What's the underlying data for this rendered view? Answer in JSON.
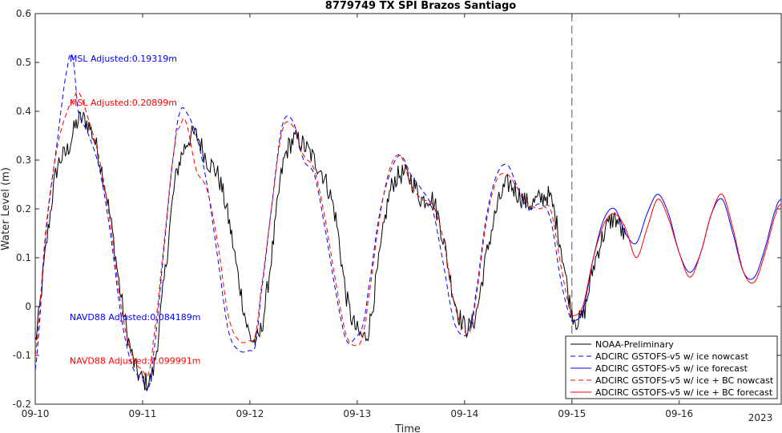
{
  "chart_data": {
    "type": "line",
    "title": "8779749 TX SPI Brazos Santiago",
    "xlabel": "Time",
    "ylabel": "Water Level (m)",
    "xlim": [
      0,
      6.95
    ],
    "ylim": [
      -0.2,
      0.6
    ],
    "x_unit": "days from 09-10 00:00 (2023)",
    "xticks": [
      0,
      1,
      2,
      3,
      4,
      5,
      6
    ],
    "xticklabels": [
      "09-10",
      "09-11",
      "09-12",
      "09-13",
      "09-14",
      "09-15",
      "09-16"
    ],
    "year_label": "2023",
    "yticks": [
      -0.2,
      -0.1,
      0,
      0.1,
      0.2,
      0.3,
      0.4,
      0.5,
      0.6
    ],
    "yticklabels": [
      "-0.2",
      "-0.1",
      "0",
      "0.1",
      "0.2",
      "0.3",
      "0.4",
      "0.5",
      "0.6"
    ],
    "nowcast_end_x": 5.0,
    "legend_position": "bottom-right",
    "grid": false,
    "annotations": [
      {
        "text": "MSL Adjusted:0.19319m",
        "x": 0.32,
        "y": 0.508,
        "color": "#0000ff"
      },
      {
        "text": "MSL Adjusted:0.20899m",
        "x": 0.32,
        "y": 0.418,
        "color": "#ff0000"
      },
      {
        "text": "NAVD88 Adjusted:0.084189m",
        "x": 0.32,
        "y": -0.021,
        "color": "#0000ff"
      },
      {
        "text": "NAVD88 Adjusted:0.099991m",
        "x": 0.32,
        "y": -0.111,
        "color": "#ff0000"
      }
    ],
    "series": [
      {
        "name": "NOAA-Preliminary",
        "color": "#000000",
        "dash": "",
        "noise": 0.022,
        "x": [
          0.0,
          0.1,
          0.2,
          0.3,
          0.4,
          0.5,
          0.6,
          0.7,
          0.8,
          0.9,
          1.0,
          1.1,
          1.2,
          1.3,
          1.4,
          1.5,
          1.6,
          1.7,
          1.8,
          1.9,
          2.0,
          2.1,
          2.2,
          2.3,
          2.4,
          2.5,
          2.6,
          2.7,
          2.8,
          2.9,
          3.0,
          3.1,
          3.2,
          3.3,
          3.4,
          3.5,
          3.6,
          3.7,
          3.8,
          3.9,
          4.0,
          4.1,
          4.2,
          4.3,
          4.4,
          4.5,
          4.6,
          4.7,
          4.8,
          4.9,
          5.0,
          5.1,
          5.2,
          5.3,
          5.4,
          5.5
        ],
        "y": [
          -0.07,
          0.12,
          0.28,
          0.32,
          0.38,
          0.37,
          0.3,
          0.18,
          0.02,
          -0.1,
          -0.15,
          -0.13,
          0.05,
          0.25,
          0.33,
          0.35,
          0.3,
          0.27,
          0.18,
          0.05,
          -0.06,
          -0.05,
          0.1,
          0.28,
          0.34,
          0.33,
          0.3,
          0.26,
          0.18,
          0.02,
          -0.05,
          -0.05,
          0.09,
          0.23,
          0.27,
          0.26,
          0.22,
          0.22,
          0.14,
          0.02,
          -0.04,
          -0.02,
          0.1,
          0.2,
          0.25,
          0.23,
          0.21,
          0.22,
          0.22,
          0.12,
          -0.01,
          -0.02,
          0.08,
          0.15,
          0.18,
          0.14
        ]
      },
      {
        "name": "ADCIRC GSTOFS-v5  w/ ice nowcast",
        "color": "#0000ff",
        "dash": "6,4",
        "x": [
          0.0,
          0.1,
          0.2,
          0.3,
          0.35,
          0.4,
          0.5,
          0.6,
          0.7,
          0.8,
          0.9,
          1.0,
          1.05,
          1.1,
          1.2,
          1.3,
          1.35,
          1.4,
          1.5,
          1.6,
          1.7,
          1.8,
          1.9,
          2.0,
          2.05,
          2.1,
          2.2,
          2.3,
          2.4,
          2.5,
          2.6,
          2.7,
          2.8,
          2.9,
          3.0,
          3.05,
          3.1,
          3.2,
          3.3,
          3.4,
          3.5,
          3.6,
          3.7,
          3.8,
          3.9,
          4.0,
          4.05,
          4.1,
          4.2,
          4.3,
          4.4,
          4.5,
          4.6,
          4.7,
          4.8,
          4.9,
          5.0
        ],
        "y": [
          -0.13,
          0.15,
          0.33,
          0.49,
          0.51,
          0.4,
          0.35,
          0.28,
          0.15,
          -0.02,
          -0.12,
          -0.15,
          -0.17,
          -0.1,
          0.12,
          0.33,
          0.4,
          0.4,
          0.35,
          0.25,
          0.1,
          -0.05,
          -0.09,
          -0.09,
          -0.08,
          0.02,
          0.2,
          0.37,
          0.38,
          0.3,
          0.27,
          0.16,
          0.03,
          -0.07,
          -0.06,
          -0.04,
          0.03,
          0.18,
          0.27,
          0.31,
          0.27,
          0.24,
          0.2,
          0.09,
          -0.03,
          -0.06,
          -0.04,
          0.02,
          0.18,
          0.27,
          0.29,
          0.24,
          0.2,
          0.21,
          0.18,
          0.05,
          -0.03
        ]
      },
      {
        "name": "ADCIRC GSTOFS-v5  w/ ice forecast",
        "color": "#0000ff",
        "dash": "",
        "x": [
          5.0,
          5.1,
          5.2,
          5.3,
          5.4,
          5.5,
          5.6,
          5.7,
          5.8,
          5.9,
          6.0,
          6.1,
          6.2,
          6.3,
          6.4,
          6.5,
          6.6,
          6.7,
          6.8,
          6.9,
          6.95
        ],
        "y": [
          -0.03,
          -0.01,
          0.1,
          0.18,
          0.2,
          0.15,
          0.13,
          0.19,
          0.23,
          0.19,
          0.11,
          0.07,
          0.11,
          0.19,
          0.22,
          0.15,
          0.07,
          0.06,
          0.12,
          0.2,
          0.22
        ]
      },
      {
        "name": "ADCIRC GSTOFS-v5  w/ ice + BC nowcast",
        "color": "#ff0000",
        "dash": "6,4",
        "x": [
          0.0,
          0.1,
          0.2,
          0.3,
          0.35,
          0.4,
          0.5,
          0.6,
          0.7,
          0.8,
          0.9,
          1.0,
          1.05,
          1.1,
          1.2,
          1.3,
          1.35,
          1.4,
          1.5,
          1.6,
          1.7,
          1.8,
          1.9,
          2.0,
          2.05,
          2.1,
          2.2,
          2.3,
          2.4,
          2.5,
          2.6,
          2.7,
          2.8,
          2.9,
          3.0,
          3.05,
          3.1,
          3.2,
          3.3,
          3.4,
          3.5,
          3.6,
          3.7,
          3.8,
          3.9,
          4.0,
          4.05,
          4.1,
          4.2,
          4.3,
          4.4,
          4.5,
          4.6,
          4.7,
          4.8,
          4.9,
          5.0
        ],
        "y": [
          -0.1,
          0.16,
          0.32,
          0.4,
          0.42,
          0.44,
          0.38,
          0.3,
          0.17,
          0.0,
          -0.1,
          -0.13,
          -0.14,
          -0.07,
          0.13,
          0.33,
          0.37,
          0.38,
          0.28,
          0.24,
          0.13,
          -0.02,
          -0.07,
          -0.07,
          -0.06,
          0.03,
          0.2,
          0.36,
          0.37,
          0.31,
          0.28,
          0.18,
          0.05,
          -0.06,
          -0.08,
          -0.06,
          0.01,
          0.17,
          0.28,
          0.31,
          0.25,
          0.22,
          0.21,
          0.14,
          0.01,
          -0.05,
          -0.05,
          0.01,
          0.17,
          0.26,
          0.27,
          0.24,
          0.21,
          0.2,
          0.2,
          0.08,
          -0.02
        ]
      },
      {
        "name": "ADCIRC GSTOFS-v5  w/ ice + BC forecast",
        "color": "#ff0000",
        "dash": "",
        "x": [
          5.0,
          5.1,
          5.2,
          5.3,
          5.4,
          5.5,
          5.6,
          5.7,
          5.8,
          5.9,
          6.0,
          6.1,
          6.2,
          6.3,
          6.4,
          6.5,
          6.6,
          6.7,
          6.8,
          6.9,
          6.95
        ],
        "y": [
          -0.02,
          0.0,
          0.1,
          0.17,
          0.19,
          0.16,
          0.1,
          0.16,
          0.22,
          0.18,
          0.11,
          0.06,
          0.11,
          0.19,
          0.23,
          0.16,
          0.07,
          0.05,
          0.11,
          0.19,
          0.21
        ]
      }
    ]
  }
}
